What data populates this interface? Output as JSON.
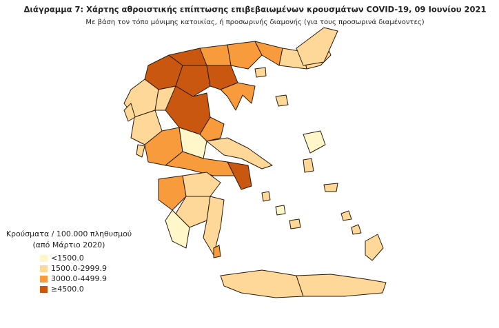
{
  "title": "Διάγραμμα 7: Χάρτης αθροιστικής επίπτωσης επιβεβαιωμένων κρουσμάτων COVID-19, 09 Ιουνίου 2021",
  "subtitle": "Με βάση τον τόπο μόνιμης κατοικίας, ή προσωρινής διαμονής (για τους προσωρινά διαμένοντες)",
  "legend": {
    "title": "Κρούσματα / 100.000 πληθυσμού",
    "subtitle": "(από Μάρτιο 2020)",
    "items": [
      {
        "label": "<1500.0",
        "color": "#fff6c9"
      },
      {
        "label": "1500.0-2999.9",
        "color": "#fdd898"
      },
      {
        "label": "3000.0-4499.9",
        "color": "#f89b3c"
      },
      {
        "label": "≥4500.0",
        "color": "#c9570f"
      }
    ]
  }
}
